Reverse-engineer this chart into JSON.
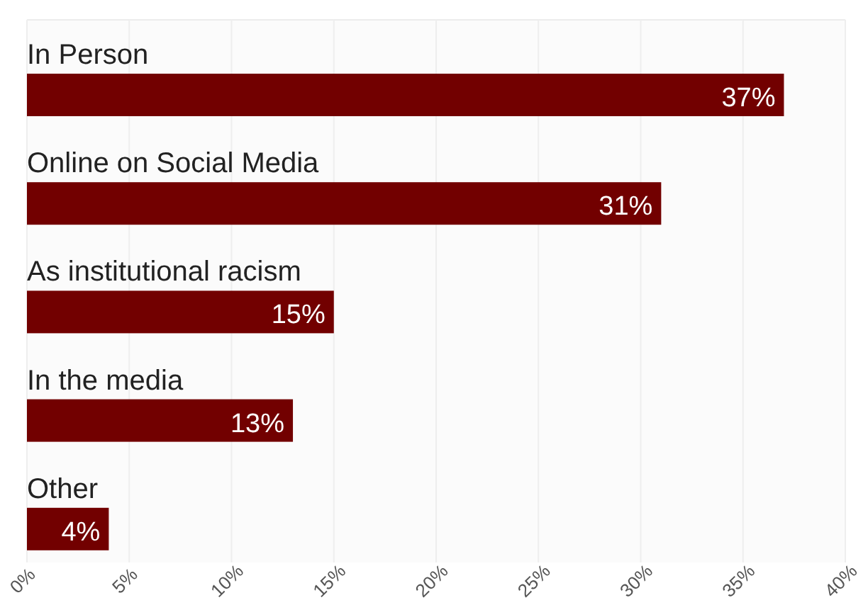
{
  "chart_data": {
    "type": "bar",
    "orientation": "horizontal",
    "categories": [
      "In Person",
      "Online on Social Media",
      "As institutional racism",
      "In the media",
      "Other"
    ],
    "values": [
      37,
      31,
      15,
      13,
      4
    ],
    "value_labels": [
      "37%",
      "31%",
      "15%",
      "13%",
      "4%"
    ],
    "color": "#720000",
    "xlim": [
      0,
      40
    ],
    "xticks": [
      {
        "value": 0,
        "label": "0%"
      },
      {
        "value": 5,
        "label": "5%"
      },
      {
        "value": 10,
        "label": "10%"
      },
      {
        "value": 15,
        "label": "15%"
      },
      {
        "value": 20,
        "label": "20%"
      },
      {
        "value": 25,
        "label": "25%"
      },
      {
        "value": 30,
        "label": "30%"
      },
      {
        "value": 35,
        "label": "35%"
      },
      {
        "value": 40,
        "label": "40%"
      }
    ],
    "grid": "x"
  }
}
